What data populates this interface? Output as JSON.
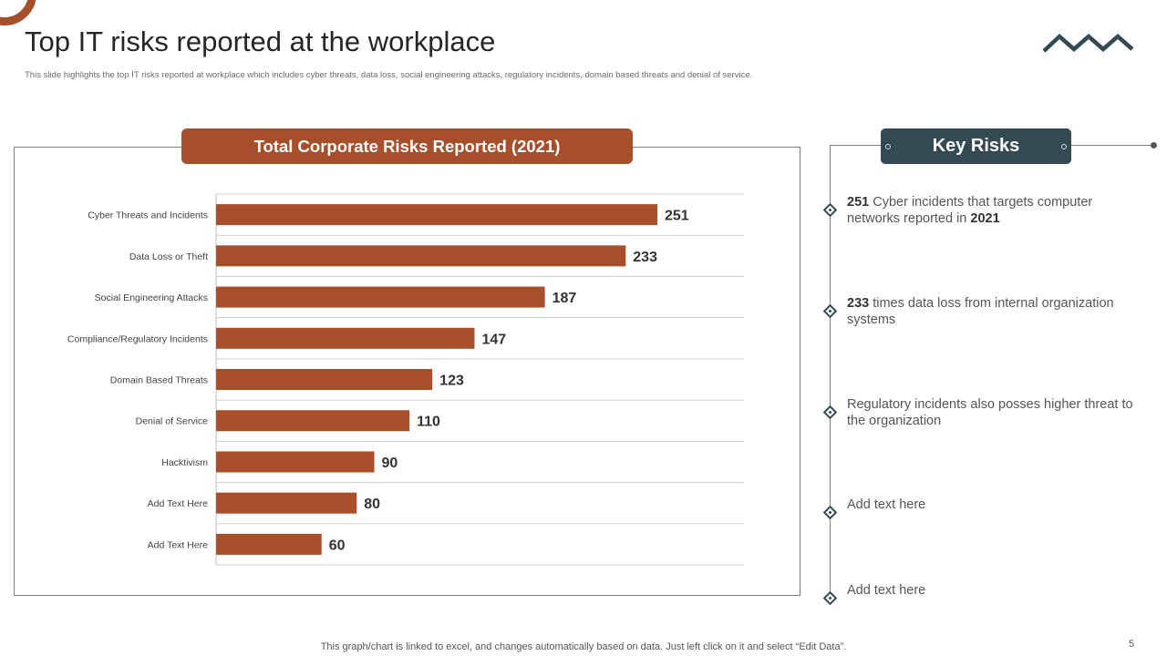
{
  "slide": {
    "title": "Top IT risks reported at the workplace",
    "subtitle": "This slide highlights the top IT  risks reported at workplace which includes cyber threats, data loss, social engineering attacks, regulatory incidents, domain based threats and denial of service.",
    "footer": "This graph/chart is linked to excel,  and changes automatically based on data. Just left click on it and select “Edit Data”.",
    "page_number": "5",
    "accent_color": "#a64f2a",
    "dark_color": "#344a53"
  },
  "chart_data": {
    "type": "bar",
    "orientation": "horizontal",
    "title": "Total Corporate Risks Reported (2021)",
    "categories": [
      "Cyber Threats and Incidents",
      "Data Loss or Theft",
      "Social Engineering Attacks",
      "Compliance/Regulatory Incidents",
      "Domain Based Threats",
      "Denial of Service",
      "Hacktivism",
      "Add Text Here",
      "Add Text Here"
    ],
    "values": [
      251,
      233,
      187,
      147,
      123,
      110,
      90,
      80,
      60
    ],
    "xlim": [
      0,
      300
    ],
    "grid": true,
    "data_labels": true,
    "bar_color": "#a64f2a"
  },
  "key_risks": {
    "title": "Key Risks",
    "items": [
      {
        "bold": "251",
        "text": " Cyber incidents that targets computer networks reported in ",
        "bold2": "2021"
      },
      {
        "bold": "233",
        "text": " times data loss from internal organization systems",
        "bold2": ""
      },
      {
        "bold": "",
        "text": "Regulatory incidents also posses higher threat to the organization",
        "bold2": ""
      },
      {
        "bold": "",
        "text": "Add text here",
        "bold2": ""
      },
      {
        "bold": "",
        "text": "Add text here",
        "bold2": ""
      }
    ]
  }
}
